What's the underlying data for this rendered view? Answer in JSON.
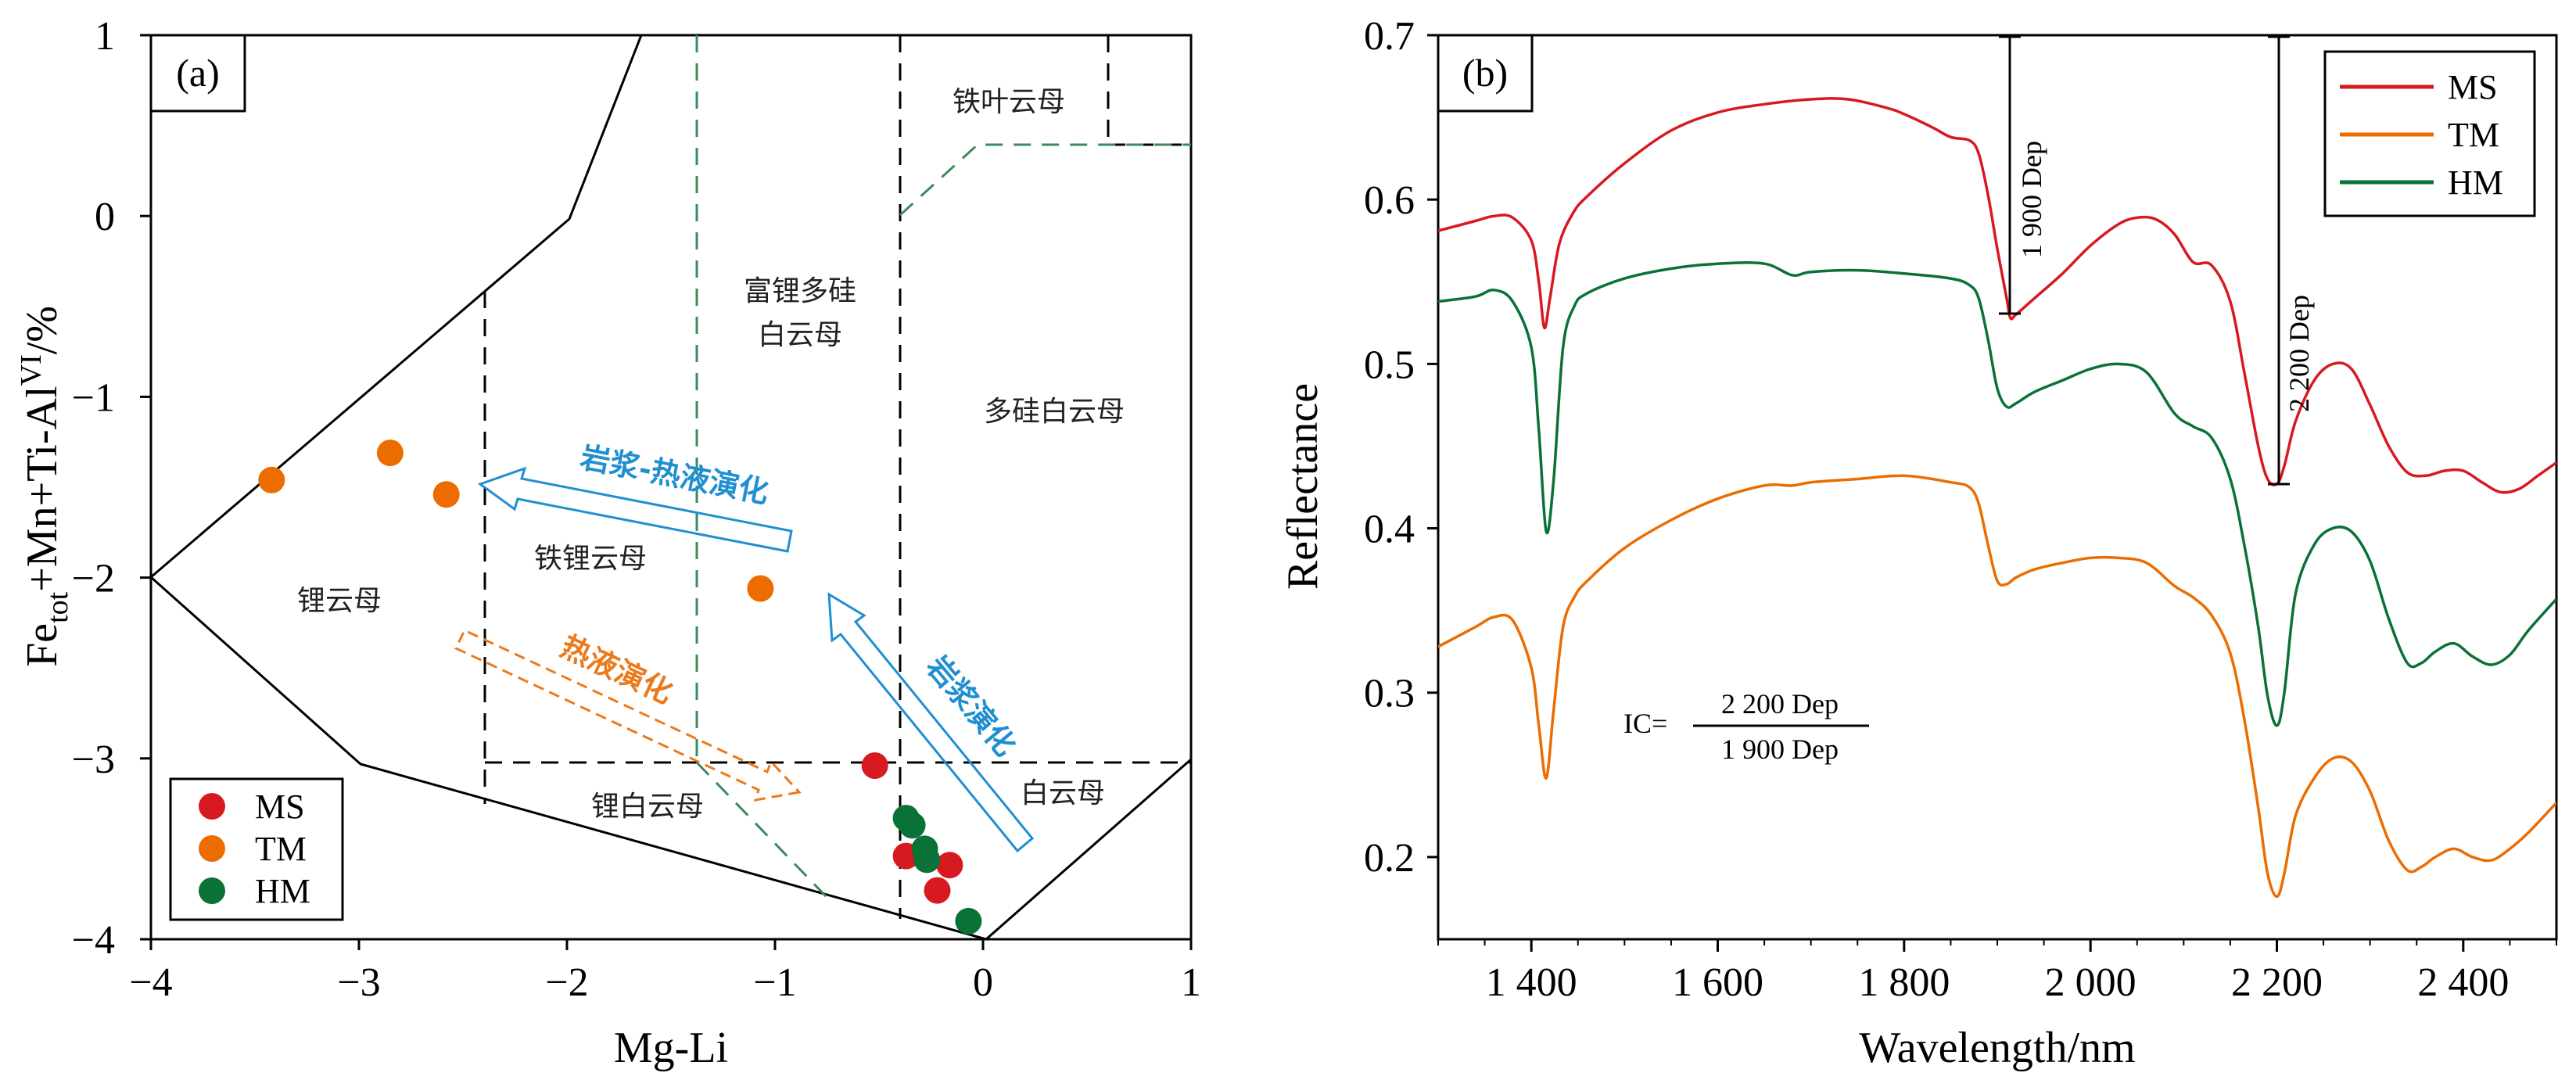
{
  "chart_data": [
    {
      "type": "scatter",
      "panel_label": "(a)",
      "xlabel": "Mg-Li",
      "ylabel": "Fe_tot+Mn+Ti-Al^VI/%",
      "ylabel_parts": {
        "base": "Fe",
        "sub": "tot",
        "mid": "+Mn+Ti-Al",
        "sup": "VI",
        "end": "/%"
      },
      "xlim": [
        -4,
        1
      ],
      "ylim": [
        -4,
        1
      ],
      "x_ticks": [
        -4,
        -3,
        -2,
        -1,
        0,
        1
      ],
      "x_tick_labels": [
        "−4",
        "−3",
        "−2",
        "−1",
        "0",
        "1"
      ],
      "y_ticks": [
        1,
        0,
        -1,
        -2,
        -3,
        -4
      ],
      "y_tick_labels": [
        "1",
        "0",
        "−1",
        "−2",
        "−3",
        "−4"
      ],
      "colors": {
        "MS": "#d71920",
        "TM": "#ec6c00",
        "HM": "#0a7137",
        "blue": "#1f8fd1",
        "orange": "#ec7a1c",
        "green_dash": "#3a8a5c"
      },
      "series": [
        {
          "name": "MS",
          "color": "#d71920",
          "x": [
            -0.52,
            -0.37,
            -0.3,
            -0.16,
            -0.22
          ],
          "y": [
            -3.04,
            -3.54,
            -3.53,
            -3.59,
            -3.73
          ]
        },
        {
          "name": "TM",
          "color": "#ec6c00",
          "x": [
            -3.42,
            -2.85,
            -2.58,
            -1.07
          ],
          "y": [
            -1.46,
            -1.31,
            -1.54,
            -2.06
          ]
        },
        {
          "name": "HM",
          "color": "#0a7137",
          "x": [
            -0.37,
            -0.34,
            -0.28,
            -0.27,
            -0.07
          ],
          "y": [
            -3.33,
            -3.37,
            -3.5,
            -3.56,
            -3.9
          ]
        }
      ],
      "legend": [
        "MS",
        "TM",
        "HM"
      ],
      "region_labels": [
        "铁叶云母",
        "富锂多硅",
        "白云母",
        "多硅白云母",
        "铁锂云母",
        "锂云母",
        "锂白云母",
        "白云母"
      ],
      "arrow_labels": {
        "magmatic_hydrothermal": "岩浆-热液演化",
        "hydrothermal": "热液演化",
        "magmatic": "岩浆演化"
      }
    },
    {
      "type": "line",
      "panel_label": "(b)",
      "xlabel": "Wavelength/nm",
      "ylabel": "Reflectance",
      "xlim": [
        1300,
        2500
      ],
      "ylim": [
        0.15,
        0.7
      ],
      "x_ticks": [
        1400,
        1600,
        1800,
        2000,
        2200,
        2400
      ],
      "x_tick_labels": [
        "1 400",
        "1 600",
        "1 800",
        "2 000",
        "2 200",
        "2 400"
      ],
      "y_ticks": [
        0.2,
        0.3,
        0.4,
        0.5,
        0.6,
        0.7
      ],
      "y_tick_labels": [
        "0.2",
        "0.3",
        "0.4",
        "0.5",
        "0.6",
        "0.7"
      ],
      "legend": [
        "MS",
        "TM",
        "HM"
      ],
      "series": [
        {
          "name": "MS",
          "color": "#d71920",
          "x": [
            1300,
            1340,
            1360,
            1380,
            1400,
            1408,
            1414,
            1420,
            1430,
            1445,
            1460,
            1500,
            1550,
            1600,
            1650,
            1700,
            1740,
            1780,
            1800,
            1830,
            1850,
            1870,
            1880,
            1890,
            1900,
            1910,
            1914,
            1920,
            1940,
            1970,
            2000,
            2030,
            2050,
            2070,
            2090,
            2110,
            2130,
            2150,
            2165,
            2180,
            2190,
            2200,
            2208,
            2220,
            2240,
            2260,
            2280,
            2300,
            2320,
            2340,
            2360,
            2380,
            2400,
            2420,
            2440,
            2460,
            2480,
            2500
          ],
          "y": [
            0.581,
            0.587,
            0.59,
            0.589,
            0.575,
            0.55,
            0.522,
            0.54,
            0.573,
            0.592,
            0.602,
            0.622,
            0.642,
            0.653,
            0.658,
            0.661,
            0.661,
            0.656,
            0.652,
            0.644,
            0.638,
            0.636,
            0.628,
            0.603,
            0.57,
            0.54,
            0.528,
            0.53,
            0.54,
            0.555,
            0.572,
            0.585,
            0.589,
            0.588,
            0.579,
            0.562,
            0.56,
            0.538,
            0.495,
            0.45,
            0.43,
            0.427,
            0.438,
            0.465,
            0.49,
            0.5,
            0.497,
            0.475,
            0.45,
            0.434,
            0.432,
            0.435,
            0.435,
            0.428,
            0.422,
            0.424,
            0.432,
            0.44
          ]
        },
        {
          "name": "HM",
          "color": "#0a7137",
          "x": [
            1300,
            1340,
            1360,
            1380,
            1400,
            1408,
            1416,
            1424,
            1434,
            1446,
            1460,
            1500,
            1550,
            1600,
            1650,
            1680,
            1700,
            1750,
            1800,
            1850,
            1870,
            1880,
            1890,
            1900,
            1910,
            1920,
            1940,
            1970,
            2000,
            2030,
            2060,
            2090,
            2110,
            2130,
            2150,
            2165,
            2180,
            2190,
            2200,
            2208,
            2220,
            2240,
            2260,
            2280,
            2300,
            2320,
            2340,
            2355,
            2370,
            2390,
            2410,
            2430,
            2450,
            2470,
            2500
          ],
          "y": [
            0.538,
            0.541,
            0.545,
            0.538,
            0.51,
            0.46,
            0.398,
            0.43,
            0.51,
            0.535,
            0.543,
            0.552,
            0.558,
            0.561,
            0.561,
            0.554,
            0.556,
            0.557,
            0.555,
            0.552,
            0.548,
            0.54,
            0.515,
            0.485,
            0.474,
            0.476,
            0.483,
            0.49,
            0.497,
            0.5,
            0.495,
            0.47,
            0.462,
            0.455,
            0.43,
            0.39,
            0.34,
            0.298,
            0.28,
            0.3,
            0.36,
            0.39,
            0.4,
            0.398,
            0.38,
            0.345,
            0.318,
            0.318,
            0.325,
            0.33,
            0.322,
            0.317,
            0.323,
            0.338,
            0.357
          ]
        },
        {
          "name": "TM",
          "color": "#ec6c00",
          "x": [
            1300,
            1340,
            1360,
            1380,
            1400,
            1408,
            1416,
            1424,
            1434,
            1446,
            1460,
            1500,
            1550,
            1600,
            1650,
            1680,
            1700,
            1750,
            1800,
            1850,
            1870,
            1880,
            1890,
            1900,
            1910,
            1920,
            1940,
            1970,
            2000,
            2030,
            2060,
            2090,
            2110,
            2130,
            2150,
            2165,
            2180,
            2190,
            2200,
            2208,
            2220,
            2240,
            2260,
            2280,
            2300,
            2320,
            2340,
            2355,
            2370,
            2390,
            2410,
            2430,
            2450,
            2470,
            2500
          ],
          "y": [
            0.328,
            0.34,
            0.346,
            0.344,
            0.315,
            0.28,
            0.248,
            0.29,
            0.34,
            0.358,
            0.368,
            0.388,
            0.405,
            0.418,
            0.426,
            0.426,
            0.428,
            0.43,
            0.432,
            0.428,
            0.425,
            0.415,
            0.39,
            0.368,
            0.366,
            0.37,
            0.375,
            0.379,
            0.382,
            0.382,
            0.379,
            0.365,
            0.358,
            0.347,
            0.324,
            0.284,
            0.23,
            0.19,
            0.176,
            0.19,
            0.225,
            0.248,
            0.26,
            0.258,
            0.24,
            0.21,
            0.192,
            0.194,
            0.2,
            0.205,
            0.2,
            0.198,
            0.205,
            0.215,
            0.233
          ]
        }
      ],
      "annotations": {
        "dep_1900": "1 900 Dep",
        "dep_2200": "2 200 Dep",
        "ic_prefix": "IC=",
        "ic_numerator": "2 200 Dep",
        "ic_denominator": "1 900 Dep"
      }
    }
  ]
}
